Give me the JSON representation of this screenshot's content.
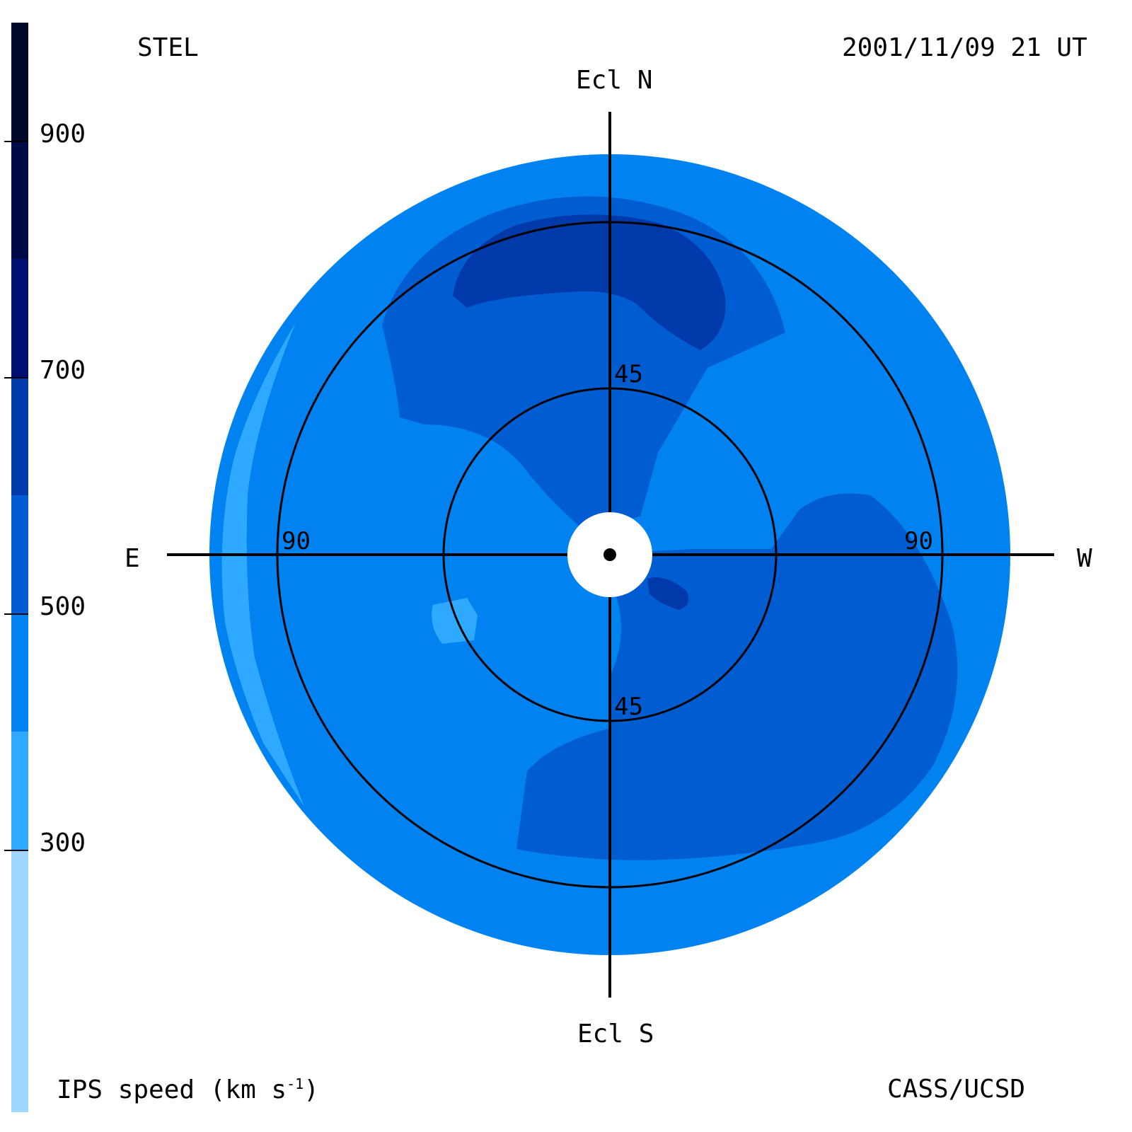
{
  "header": {
    "observatory": "STEL",
    "timestamp": "2001/11/09 21 UT",
    "credit": "CASS/UCSD"
  },
  "directions": {
    "north": "Ecl N",
    "south": "Ecl S",
    "east": "E",
    "west": "W"
  },
  "rings": {
    "inner_top": "45",
    "inner_bottom": "45",
    "outer_left": "90",
    "outer_right": "90"
  },
  "colorbar": {
    "label": "IPS speed (km s",
    "label_sup": "-1",
    "label_end": ")",
    "ticks": [
      "900",
      "700",
      "500",
      "300"
    ],
    "colors": [
      "#000728",
      "#000a49",
      "#000e74",
      "#0039aa",
      "#005dd1",
      "#0083f0",
      "#2ea9ff",
      "#9ed6ff"
    ]
  },
  "map_colors": {
    "outer_disk": "#0083f0",
    "edge_light": "#2ea9ff",
    "medium_region": "#005dd1",
    "dark_region": "#0039aa",
    "sun_occulter": "#ffffff"
  }
}
